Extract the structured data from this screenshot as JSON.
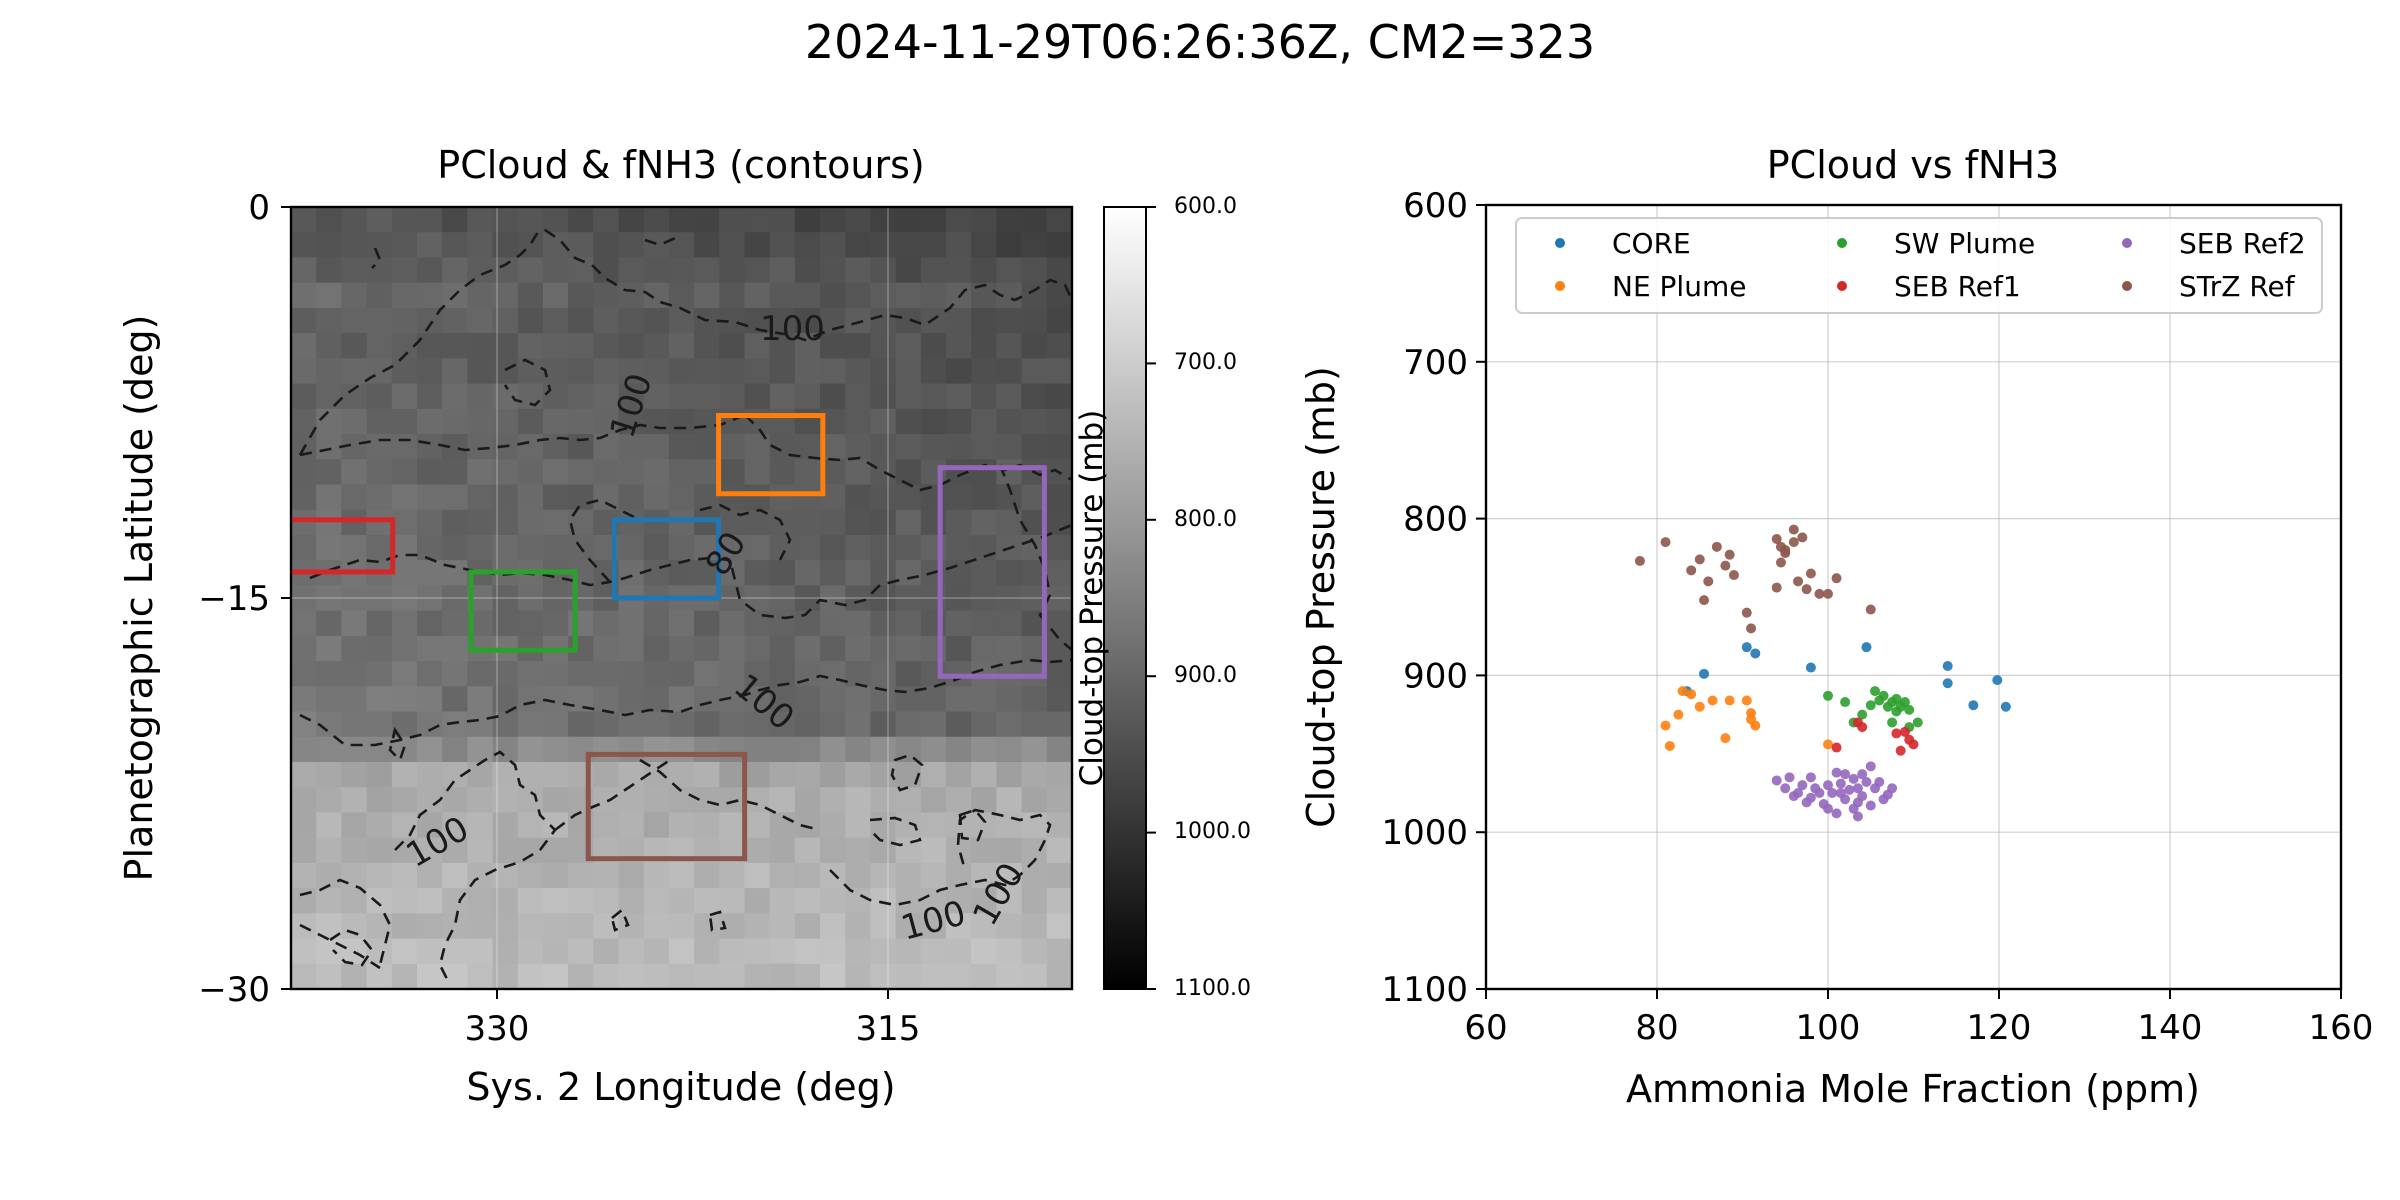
{
  "suptitle": "2024-11-29T06:26:36Z, CM2=323",
  "map_panel": {
    "title": "PCloud & fNH3 (contours)",
    "xlabel": "Sys. 2 Longitude (deg)",
    "ylabel": "Planetographic Latitude (deg)",
    "xticks": [
      "330",
      "315"
    ],
    "yticks": [
      "0",
      "−15",
      "−30"
    ],
    "contour_labels": [
      "100",
      "100",
      "80",
      "100",
      "100",
      "100",
      "100"
    ],
    "colorbar": {
      "label": "Cloud-top Pressure (mb)",
      "ticks": [
        "600.0",
        "700.0",
        "800.0",
        "900.0",
        "1000.0",
        "1100.0"
      ]
    },
    "boxes": [
      {
        "region": "CORE",
        "color": "#1f77b4",
        "lon": [
          325.5,
          321.5
        ],
        "lat": [
          -12,
          -15
        ]
      },
      {
        "region": "NE Plume",
        "color": "#ff7f0e",
        "lon": [
          321.5,
          317.5
        ],
        "lat": [
          -8,
          -11
        ]
      },
      {
        "region": "SW Plume",
        "color": "#2ca02c",
        "lon": [
          331,
          327
        ],
        "lat": [
          -14,
          -17
        ]
      },
      {
        "region": "SEB Ref1",
        "color": "#d62728",
        "lon": [
          338,
          334
        ],
        "lat": [
          -12,
          -14
        ]
      },
      {
        "region": "SEB Ref2",
        "color": "#9467bd",
        "lon": [
          313,
          309
        ],
        "lat": [
          -10,
          -18
        ]
      },
      {
        "region": "STrZ Ref",
        "color": "#8c564b",
        "lon": [
          326.5,
          320.5
        ],
        "lat": [
          -21,
          -25
        ]
      }
    ]
  },
  "chart_data": {
    "type": "scatter",
    "title": "PCloud vs fNH3",
    "xlabel": "Ammonia Mole Fraction (ppm)",
    "ylabel": "Cloud-top Pressure (mb)",
    "xlim": [
      60,
      160
    ],
    "ylim": [
      1100,
      600
    ],
    "xticks": [
      "60",
      "80",
      "100",
      "120",
      "140",
      "160"
    ],
    "yticks": [
      "600",
      "700",
      "800",
      "900",
      "1000",
      "1100"
    ],
    "grid": true,
    "legend_position": "top",
    "series": [
      {
        "name": "CORE",
        "color": "#1f77b4",
        "x": [
          83.5,
          85.5,
          90.5,
          91.5,
          98,
          104.5,
          114,
          114,
          117,
          119.8,
          120.8
        ],
        "y": [
          910,
          899,
          882,
          886,
          895,
          882,
          894,
          905,
          919,
          903,
          920
        ]
      },
      {
        "name": "NE Plume",
        "color": "#ff7f0e",
        "x": [
          81,
          81.5,
          82.5,
          83,
          84,
          85,
          86.5,
          88,
          88.5,
          90.5,
          91,
          91,
          91.5,
          100
        ],
        "y": [
          932,
          945,
          925,
          910,
          912,
          920,
          916,
          940,
          916,
          916,
          928,
          924,
          932,
          944
        ]
      },
      {
        "name": "SW Plume",
        "color": "#2ca02c",
        "x": [
          100,
          102,
          103,
          104,
          105,
          105.5,
          106,
          106.5,
          107,
          107.5,
          107.5,
          108,
          108,
          108.5,
          109,
          109.5,
          109.5,
          110.5
        ],
        "y": [
          913,
          917,
          930,
          925,
          919,
          910,
          916,
          913,
          920,
          917,
          930,
          915,
          923,
          920,
          917,
          922,
          933,
          930
        ]
      },
      {
        "name": "SEB Ref1",
        "color": "#d62728",
        "x": [
          101,
          103.5,
          104,
          108,
          108.5,
          109,
          109.5,
          110
        ],
        "y": [
          946,
          930,
          933,
          937,
          948,
          936,
          941,
          944
        ]
      },
      {
        "name": "SEB Ref2",
        "color": "#9467bd",
        "x": [
          94,
          95,
          95.5,
          96,
          96.5,
          97,
          97.5,
          98,
          98,
          98.5,
          99,
          99.5,
          100,
          100,
          100.5,
          101,
          101,
          101.5,
          102,
          102,
          102.5,
          103,
          103,
          103.5,
          103.5,
          104,
          104,
          104.5,
          105,
          105,
          105.5,
          106,
          106.5,
          107,
          107.5,
          101.5,
          103.5
        ],
        "y": [
          967,
          972,
          965,
          977,
          975,
          970,
          981,
          965,
          978,
          972,
          975,
          982,
          970,
          985,
          975,
          962,
          988,
          969,
          963,
          979,
          973,
          966,
          985,
          972,
          990,
          963,
          977,
          968,
          958,
          983,
          972,
          968,
          979,
          976,
          972,
          975,
          981
        ]
      },
      {
        "name": "STrZ Ref",
        "color": "#8c564b",
        "x": [
          78,
          81,
          84,
          85,
          85.5,
          86,
          87,
          88,
          88.5,
          89,
          90.5,
          91,
          94,
          94,
          94.5,
          94.5,
          95,
          95,
          96,
          96,
          96.5,
          97,
          97.5,
          98,
          99,
          100,
          101,
          105
        ],
        "y": [
          827,
          815,
          833,
          826,
          852,
          840,
          818,
          830,
          823,
          836,
          860,
          870,
          813,
          844,
          818,
          828,
          820,
          822,
          807,
          815,
          840,
          812,
          845,
          835,
          848,
          848,
          838,
          858
        ]
      }
    ]
  }
}
